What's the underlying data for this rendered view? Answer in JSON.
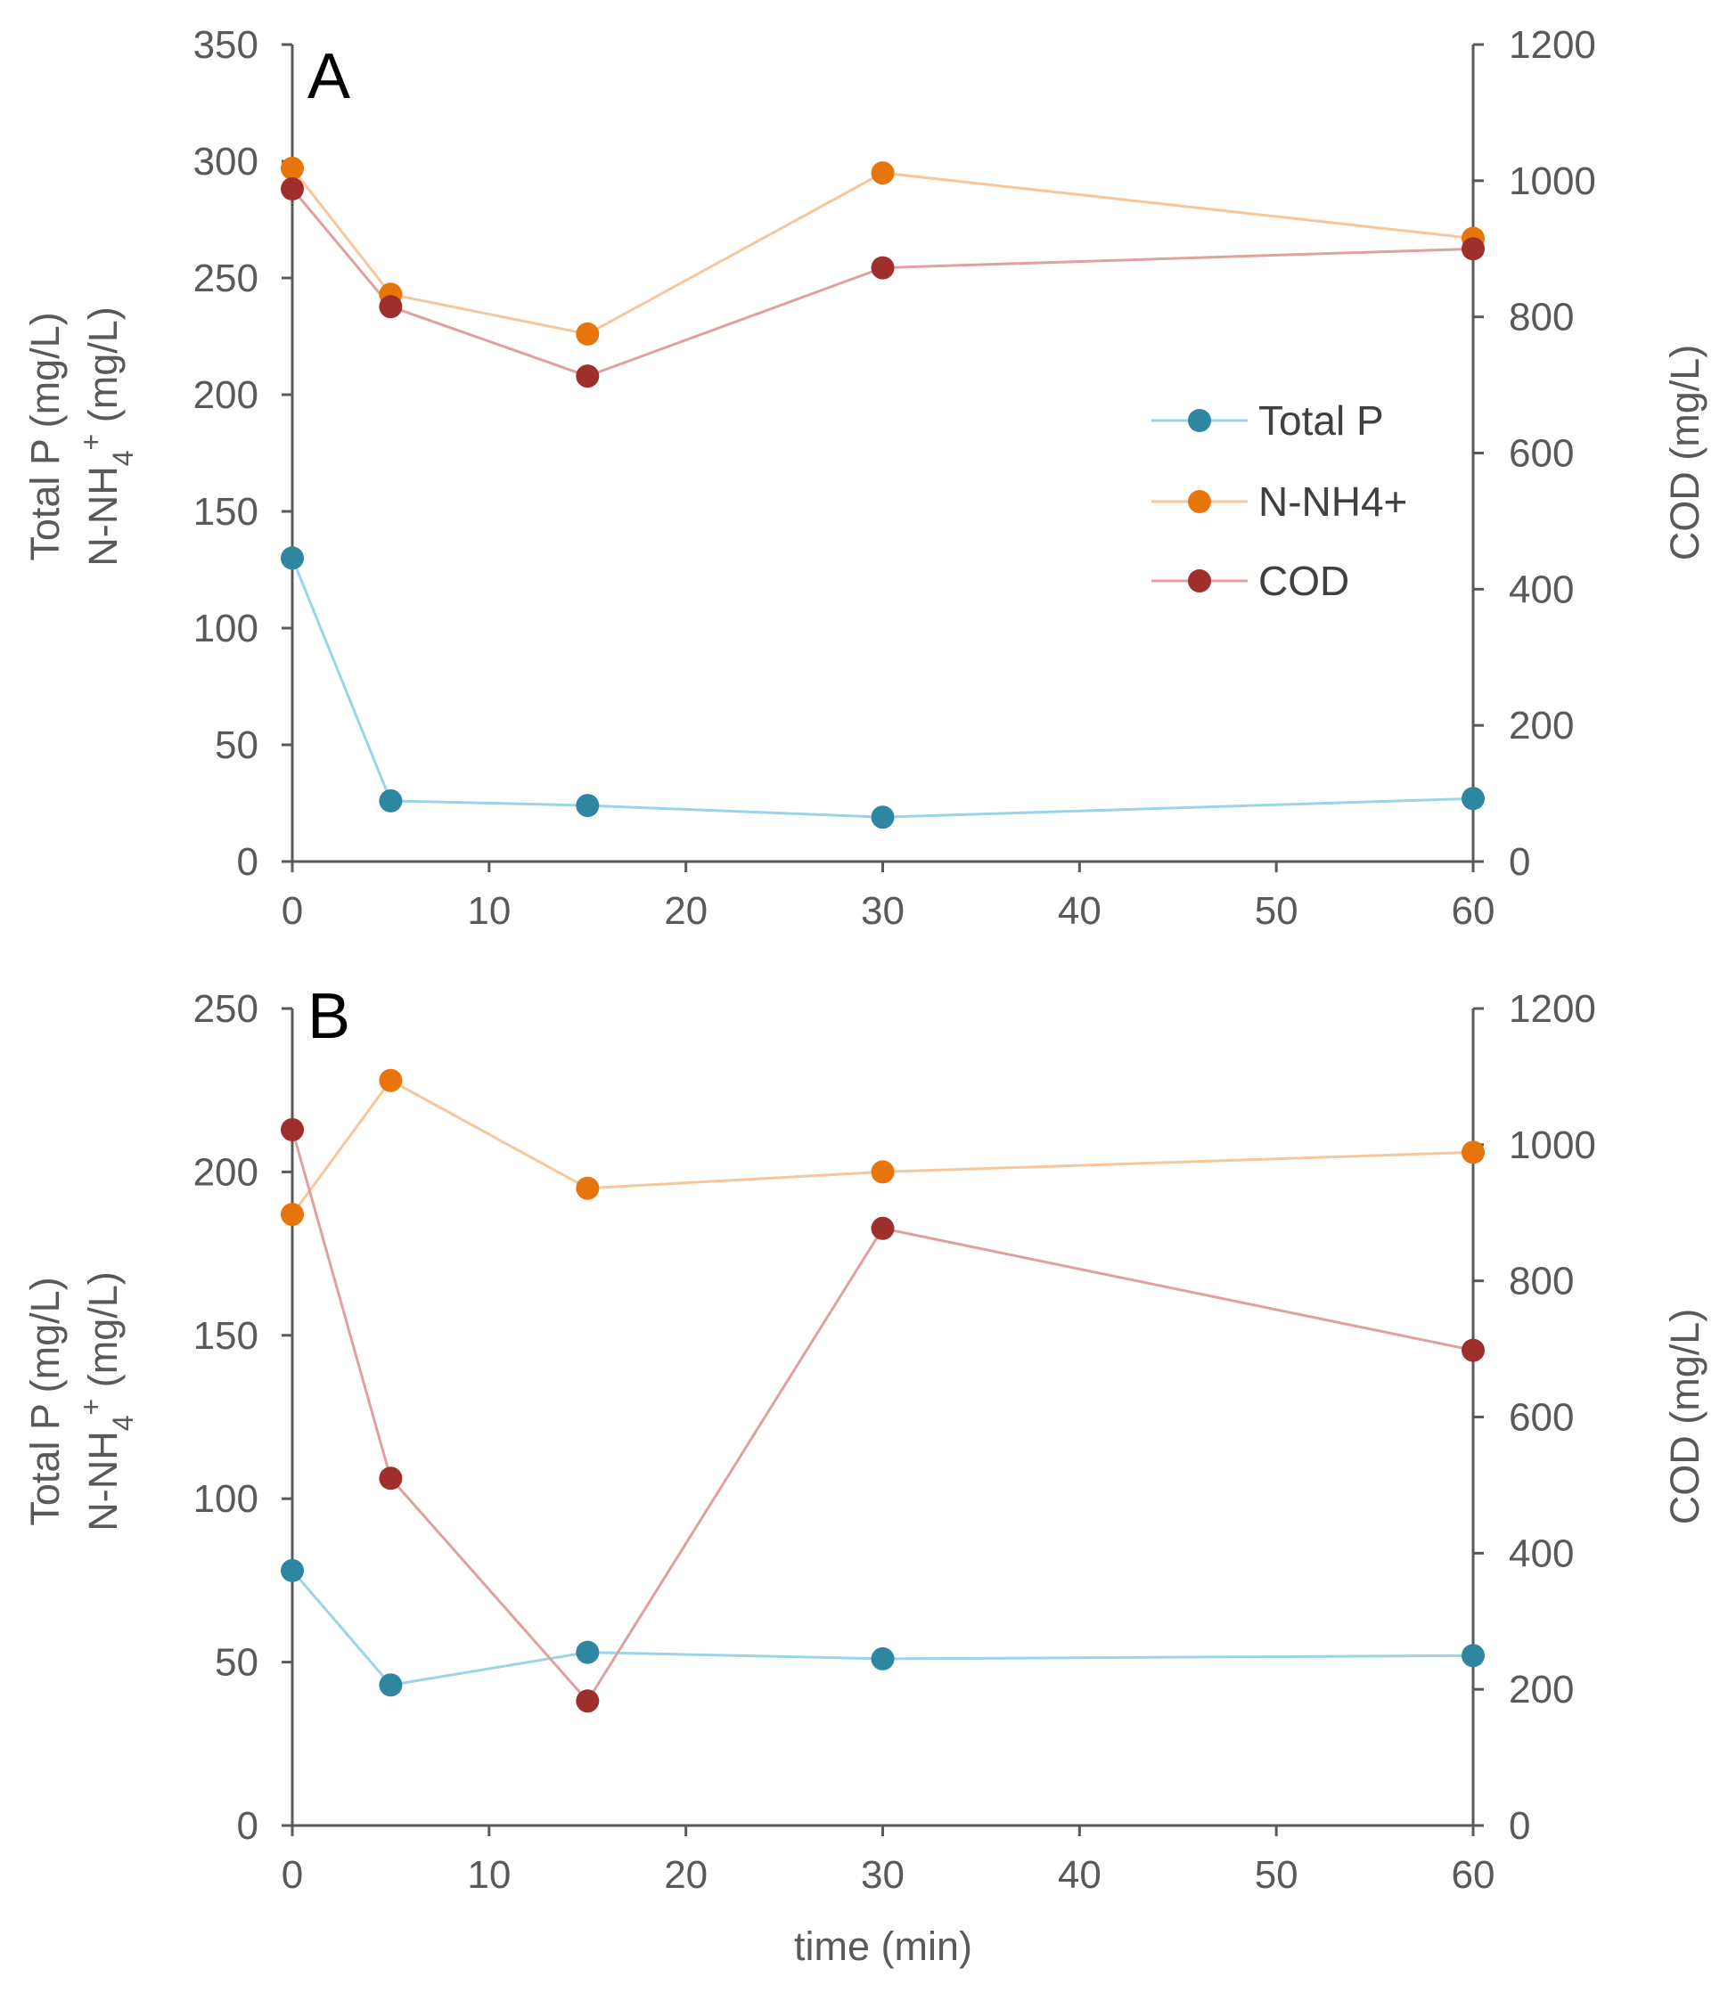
{
  "chart_data": [
    {
      "type": "line",
      "panel_label": "A",
      "x": [
        0,
        5,
        15,
        30,
        60
      ],
      "xlim": [
        0,
        60
      ],
      "xticks": [
        "0",
        "10",
        "20",
        "30",
        "40",
        "50",
        "60"
      ],
      "xlabel": "",
      "ylabel_lines": [
        "Total P (mg/L)",
        "N-NH4+ (mg/L)"
      ],
      "ylim": [
        0,
        350
      ],
      "yticks": [
        "0",
        "50",
        "100",
        "150",
        "200",
        "250",
        "300",
        "350"
      ],
      "y2label": "COD (mg/L)",
      "y2lim": [
        0,
        1200
      ],
      "y2ticks": [
        "0",
        "200",
        "400",
        "600",
        "800",
        "1000",
        "1200"
      ],
      "legend_position": "center-right",
      "series": [
        {
          "name": "Total P",
          "axis": "left",
          "values": [
            130,
            26,
            24,
            19,
            27
          ]
        },
        {
          "name": "N-NH4+",
          "axis": "left",
          "values": [
            297,
            243,
            226,
            295,
            267
          ]
        },
        {
          "name": "COD",
          "axis": "right",
          "values": [
            988,
            815,
            713,
            872,
            900
          ]
        }
      ]
    },
    {
      "type": "line",
      "panel_label": "B",
      "x": [
        0,
        5,
        15,
        30,
        60
      ],
      "xlim": [
        0,
        60
      ],
      "xticks": [
        "0",
        "10",
        "20",
        "30",
        "40",
        "50",
        "60"
      ],
      "xlabel": "time (min)",
      "ylabel_lines": [
        "Total P (mg/L)",
        "N-NH4+ (mg/L)"
      ],
      "ylim": [
        0,
        250
      ],
      "yticks": [
        "0",
        "50",
        "100",
        "150",
        "200",
        "250"
      ],
      "y2label": "COD (mg/L)",
      "y2lim": [
        0,
        1200
      ],
      "y2ticks": [
        "0",
        "200",
        "400",
        "600",
        "800",
        "1000",
        "1200"
      ],
      "series": [
        {
          "name": "Total P",
          "axis": "left",
          "values": [
            78,
            43,
            53,
            51,
            52
          ]
        },
        {
          "name": "N-NH4+",
          "axis": "left",
          "values": [
            187,
            228,
            195,
            200,
            206
          ]
        },
        {
          "name": "COD",
          "axis": "right",
          "values": [
            1022,
            510,
            183,
            877,
            698
          ]
        }
      ]
    }
  ],
  "legend": [
    {
      "name": "Total P",
      "label": "Total P",
      "line_color": "#9bd4e8",
      "marker_color": "#2e86a0"
    },
    {
      "name": "N-NH4+",
      "label": "N-NH4+",
      "line_color": "#f7c79b",
      "marker_color": "#e8740c"
    },
    {
      "name": "COD",
      "label": "COD",
      "line_color": "#e0a0a0",
      "marker_color": "#9e2f2c"
    }
  ],
  "colors": {
    "axis": "#595959",
    "text": "#595959"
  }
}
